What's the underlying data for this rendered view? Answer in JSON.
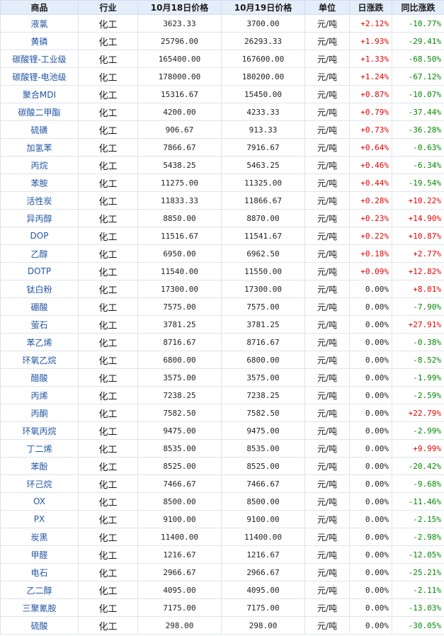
{
  "headers": {
    "name": "商品",
    "industry": "行业",
    "price1": "10月18日价格",
    "price2": "10月19日价格",
    "unit": "单位",
    "day_change": "日涨跌",
    "yoy_change": "同比涨跌"
  },
  "colors": {
    "up": "#e60000",
    "down": "#008800",
    "link": "#2255a4",
    "header_bg": "#e4eefa"
  },
  "rows": [
    {
      "name": "液氯",
      "industry": "化工",
      "price1": "3623.33",
      "price2": "3700.00",
      "unit": "元/吨",
      "day": "+2.12%",
      "yoy": "-10.77%"
    },
    {
      "name": "黄磷",
      "industry": "化工",
      "price1": "25796.00",
      "price2": "26293.33",
      "unit": "元/吨",
      "day": "+1.93%",
      "yoy": "-29.41%"
    },
    {
      "name": "碳酸锂-工业级",
      "industry": "化工",
      "price1": "165400.00",
      "price2": "167600.00",
      "unit": "元/吨",
      "day": "+1.33%",
      "yoy": "-68.50%"
    },
    {
      "name": "碳酸锂-电池级",
      "industry": "化工",
      "price1": "178000.00",
      "price2": "180200.00",
      "unit": "元/吨",
      "day": "+1.24%",
      "yoy": "-67.12%"
    },
    {
      "name": "聚合MDI",
      "industry": "化工",
      "price1": "15316.67",
      "price2": "15450.00",
      "unit": "元/吨",
      "day": "+0.87%",
      "yoy": "-10.07%"
    },
    {
      "name": "碳酸二甲酯",
      "industry": "化工",
      "price1": "4200.00",
      "price2": "4233.33",
      "unit": "元/吨",
      "day": "+0.79%",
      "yoy": "-37.44%"
    },
    {
      "name": "硫磺",
      "industry": "化工",
      "price1": "906.67",
      "price2": "913.33",
      "unit": "元/吨",
      "day": "+0.73%",
      "yoy": "-36.28%"
    },
    {
      "name": "加氢苯",
      "industry": "化工",
      "price1": "7866.67",
      "price2": "7916.67",
      "unit": "元/吨",
      "day": "+0.64%",
      "yoy": "-0.63%"
    },
    {
      "name": "丙烷",
      "industry": "化工",
      "price1": "5438.25",
      "price2": "5463.25",
      "unit": "元/吨",
      "day": "+0.46%",
      "yoy": "-6.34%"
    },
    {
      "name": "苯胺",
      "industry": "化工",
      "price1": "11275.00",
      "price2": "11325.00",
      "unit": "元/吨",
      "day": "+0.44%",
      "yoy": "-19.54%"
    },
    {
      "name": "活性炭",
      "industry": "化工",
      "price1": "11833.33",
      "price2": "11866.67",
      "unit": "元/吨",
      "day": "+0.28%",
      "yoy": "+10.22%"
    },
    {
      "name": "异丙醇",
      "industry": "化工",
      "price1": "8850.00",
      "price2": "8870.00",
      "unit": "元/吨",
      "day": "+0.23%",
      "yoy": "+14.90%"
    },
    {
      "name": "DOP",
      "industry": "化工",
      "price1": "11516.67",
      "price2": "11541.67",
      "unit": "元/吨",
      "day": "+0.22%",
      "yoy": "+10.87%"
    },
    {
      "name": "乙醇",
      "industry": "化工",
      "price1": "6950.00",
      "price2": "6962.50",
      "unit": "元/吨",
      "day": "+0.18%",
      "yoy": "+2.77%"
    },
    {
      "name": "DOTP",
      "industry": "化工",
      "price1": "11540.00",
      "price2": "11550.00",
      "unit": "元/吨",
      "day": "+0.09%",
      "yoy": "+12.82%"
    },
    {
      "name": "钛白粉",
      "industry": "化工",
      "price1": "17300.00",
      "price2": "17300.00",
      "unit": "元/吨",
      "day": "0.00%",
      "yoy": "+8.01%"
    },
    {
      "name": "硼酸",
      "industry": "化工",
      "price1": "7575.00",
      "price2": "7575.00",
      "unit": "元/吨",
      "day": "0.00%",
      "yoy": "-7.90%"
    },
    {
      "name": "萤石",
      "industry": "化工",
      "price1": "3781.25",
      "price2": "3781.25",
      "unit": "元/吨",
      "day": "0.00%",
      "yoy": "+27.91%"
    },
    {
      "name": "苯乙烯",
      "industry": "化工",
      "price1": "8716.67",
      "price2": "8716.67",
      "unit": "元/吨",
      "day": "0.00%",
      "yoy": "-0.38%"
    },
    {
      "name": "环氧乙烷",
      "industry": "化工",
      "price1": "6800.00",
      "price2": "6800.00",
      "unit": "元/吨",
      "day": "0.00%",
      "yoy": "-8.52%"
    },
    {
      "name": "醋酸",
      "industry": "化工",
      "price1": "3575.00",
      "price2": "3575.00",
      "unit": "元/吨",
      "day": "0.00%",
      "yoy": "-1.99%"
    },
    {
      "name": "丙烯",
      "industry": "化工",
      "price1": "7238.25",
      "price2": "7238.25",
      "unit": "元/吨",
      "day": "0.00%",
      "yoy": "-2.59%"
    },
    {
      "name": "丙酮",
      "industry": "化工",
      "price1": "7582.50",
      "price2": "7582.50",
      "unit": "元/吨",
      "day": "0.00%",
      "yoy": "+22.79%"
    },
    {
      "name": "环氧丙烷",
      "industry": "化工",
      "price1": "9475.00",
      "price2": "9475.00",
      "unit": "元/吨",
      "day": "0.00%",
      "yoy": "-2.99%"
    },
    {
      "name": "丁二烯",
      "industry": "化工",
      "price1": "8535.00",
      "price2": "8535.00",
      "unit": "元/吨",
      "day": "0.00%",
      "yoy": "+9.99%"
    },
    {
      "name": "苯酚",
      "industry": "化工",
      "price1": "8525.00",
      "price2": "8525.00",
      "unit": "元/吨",
      "day": "0.00%",
      "yoy": "-20.42%"
    },
    {
      "name": "环己烷",
      "industry": "化工",
      "price1": "7466.67",
      "price2": "7466.67",
      "unit": "元/吨",
      "day": "0.00%",
      "yoy": "-9.68%"
    },
    {
      "name": "OX",
      "industry": "化工",
      "price1": "8500.00",
      "price2": "8500.00",
      "unit": "元/吨",
      "day": "0.00%",
      "yoy": "-11.46%"
    },
    {
      "name": "PX",
      "industry": "化工",
      "price1": "9100.00",
      "price2": "9100.00",
      "unit": "元/吨",
      "day": "0.00%",
      "yoy": "-2.15%"
    },
    {
      "name": "炭黑",
      "industry": "化工",
      "price1": "11400.00",
      "price2": "11400.00",
      "unit": "元/吨",
      "day": "0.00%",
      "yoy": "-2.98%"
    },
    {
      "name": "甲醛",
      "industry": "化工",
      "price1": "1216.67",
      "price2": "1216.67",
      "unit": "元/吨",
      "day": "0.00%",
      "yoy": "-12.05%"
    },
    {
      "name": "电石",
      "industry": "化工",
      "price1": "2966.67",
      "price2": "2966.67",
      "unit": "元/吨",
      "day": "0.00%",
      "yoy": "-25.21%"
    },
    {
      "name": "乙二醇",
      "industry": "化工",
      "price1": "4095.00",
      "price2": "4095.00",
      "unit": "元/吨",
      "day": "0.00%",
      "yoy": "-2.11%"
    },
    {
      "name": "三聚氰胺",
      "industry": "化工",
      "price1": "7175.00",
      "price2": "7175.00",
      "unit": "元/吨",
      "day": "0.00%",
      "yoy": "-13.03%"
    },
    {
      "name": "硫酸",
      "industry": "化工",
      "price1": "298.00",
      "price2": "298.00",
      "unit": "元/吨",
      "day": "0.00%",
      "yoy": "-30.05%"
    }
  ]
}
